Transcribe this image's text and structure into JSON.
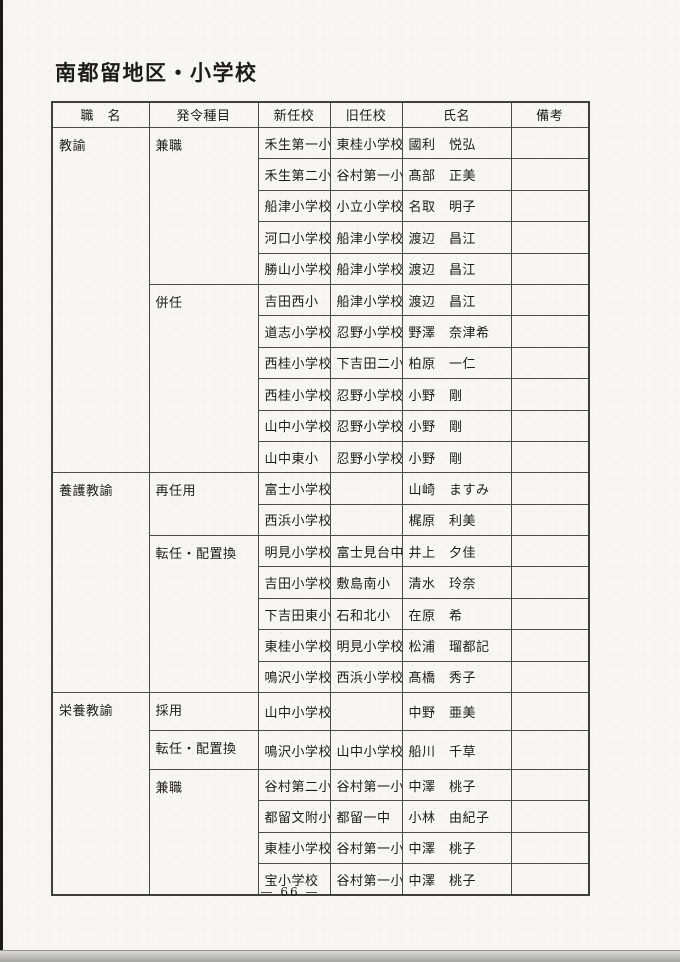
{
  "page": {
    "title": "南都留地区・小学校",
    "page_number": "— 66 —"
  },
  "colors": {
    "paper": "#f7f6f3",
    "ink": "#1d1c1a",
    "table_border": "#4c4b45",
    "scan_edge": "#1a1a18",
    "scan_band": "#a5a5a2"
  },
  "table": {
    "headers": [
      "職　名",
      "発令種目",
      "新任校",
      "旧任校",
      "氏名",
      "備考"
    ],
    "job_groups": [
      {
        "label": "教諭",
        "rows": 11
      },
      {
        "label": "養護教諭",
        "rows": 7
      },
      {
        "label": "栄養教諭",
        "rows": 6
      }
    ],
    "order_groups": [
      {
        "label": "兼職",
        "rows": 5
      },
      {
        "label": "併任",
        "rows": 6
      },
      {
        "label": "再任用",
        "rows": 2
      },
      {
        "label": "転任・配置換",
        "rows": 5
      },
      {
        "label": "採用",
        "rows": 1
      },
      {
        "label": "転任・配置換",
        "rows": 1
      },
      {
        "label": "兼職",
        "rows": 4
      }
    ],
    "rows": [
      {
        "new_school": "禾生第一小",
        "old_school": "東桂小学校",
        "name": "國利　悦弘",
        "remarks": ""
      },
      {
        "new_school": "禾生第二小",
        "old_school": "谷村第一小",
        "name": "髙部　正美",
        "remarks": ""
      },
      {
        "new_school": "船津小学校",
        "old_school": "小立小学校",
        "name": "名取　明子",
        "remarks": ""
      },
      {
        "new_school": "河口小学校",
        "old_school": "船津小学校",
        "name": "渡辺　昌江",
        "remarks": ""
      },
      {
        "new_school": "勝山小学校",
        "old_school": "船津小学校",
        "name": "渡辺　昌江",
        "remarks": ""
      },
      {
        "new_school": "吉田西小",
        "old_school": "船津小学校",
        "name": "渡辺　昌江",
        "remarks": ""
      },
      {
        "new_school": "道志小学校",
        "old_school": "忍野小学校",
        "name": "野澤　奈津希",
        "remarks": ""
      },
      {
        "new_school": "西桂小学校",
        "old_school": "下吉田二小",
        "name": "柏原　一仁",
        "remarks": ""
      },
      {
        "new_school": "西桂小学校",
        "old_school": "忍野小学校",
        "name": "小野　剛",
        "remarks": ""
      },
      {
        "new_school": "山中小学校",
        "old_school": "忍野小学校",
        "name": "小野　剛",
        "remarks": ""
      },
      {
        "new_school": "山中東小",
        "old_school": "忍野小学校",
        "name": "小野　剛",
        "remarks": ""
      },
      {
        "new_school": "富士小学校",
        "old_school": "",
        "name": "山崎　ますみ",
        "remarks": ""
      },
      {
        "new_school": "西浜小学校",
        "old_school": "",
        "name": "梶原　利美",
        "remarks": ""
      },
      {
        "new_school": "明見小学校",
        "old_school": "富士見台中",
        "name": "井上　夕佳",
        "remarks": ""
      },
      {
        "new_school": "吉田小学校",
        "old_school": "敷島南小",
        "name": "清水　玲奈",
        "remarks": ""
      },
      {
        "new_school": "下吉田東小",
        "old_school": "石和北小",
        "name": "在原　希",
        "remarks": ""
      },
      {
        "new_school": "東桂小学校",
        "old_school": "明見小学校",
        "name": "松浦　瑠都記",
        "remarks": ""
      },
      {
        "new_school": "鳴沢小学校",
        "old_school": "西浜小学校",
        "name": "髙橋　秀子",
        "remarks": ""
      },
      {
        "new_school": "山中小学校",
        "old_school": "",
        "name": "中野　亜美",
        "remarks": ""
      },
      {
        "new_school": "鳴沢小学校",
        "old_school": "山中小学校",
        "name": "船川　千草",
        "remarks": ""
      },
      {
        "new_school": "谷村第二小",
        "old_school": "谷村第一小",
        "name": "中澤　桃子",
        "remarks": ""
      },
      {
        "new_school": "都留文附小",
        "old_school": "都留一中",
        "name": "小林　由紀子",
        "remarks": ""
      },
      {
        "new_school": "東桂小学校",
        "old_school": "谷村第一小",
        "name": "中澤　桃子",
        "remarks": ""
      },
      {
        "new_school": "宝小学校",
        "old_school": "谷村第一小",
        "name": "中澤　桃子",
        "remarks": ""
      }
    ]
  }
}
